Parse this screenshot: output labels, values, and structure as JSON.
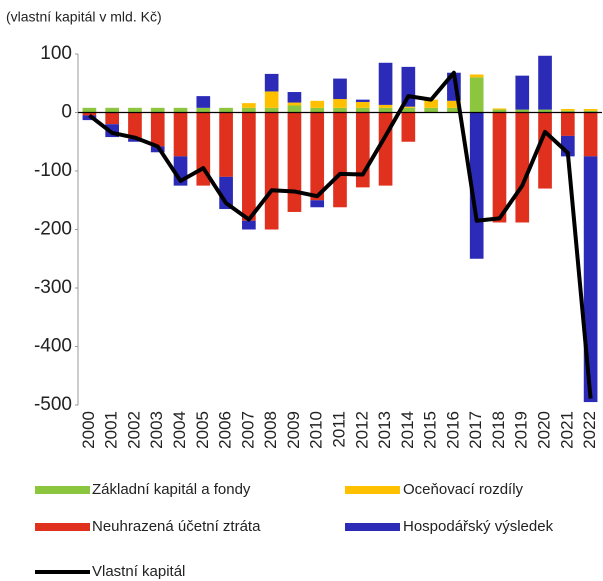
{
  "chart_data": {
    "type": "bar",
    "title": "(vlastní kapitál v mld. Kč)",
    "categories": [
      "2000",
      "2001",
      "2002",
      "2003",
      "2004",
      "2005",
      "2006",
      "2007",
      "2008",
      "2009",
      "2010",
      "2011",
      "2012",
      "2013",
      "2014",
      "2015",
      "2016",
      "2017",
      "2018",
      "2019",
      "2020",
      "2021",
      "2022"
    ],
    "series": [
      {
        "name": "Základní kapitál a fondy",
        "color": "#8cc63f",
        "values": [
          8,
          8,
          8,
          8,
          8,
          8,
          8,
          8,
          8,
          12,
          8,
          8,
          8,
          8,
          8,
          8,
          8,
          60,
          5,
          5,
          5,
          3,
          3
        ]
      },
      {
        "name": "Oceňovací rozdíly",
        "color": "#ffc000",
        "values": [
          0,
          0,
          0,
          0,
          0,
          0,
          0,
          8,
          28,
          5,
          12,
          15,
          10,
          5,
          2,
          14,
          12,
          5,
          2,
          0,
          0,
          3,
          3
        ]
      },
      {
        "name": "Neuhrazená účetní ztráta",
        "color": "#e0301e",
        "values": [
          -5,
          -20,
          -45,
          -58,
          -75,
          -125,
          -110,
          -185,
          -200,
          -170,
          -150,
          -162,
          -128,
          -125,
          -50,
          0,
          0,
          0,
          -188,
          -188,
          -130,
          -40,
          -75
        ]
      },
      {
        "name": "Hospodářský výsledek",
        "color": "#2b2bb8",
        "values": [
          -8,
          -22,
          -5,
          -10,
          -50,
          20,
          -55,
          -15,
          30,
          18,
          -12,
          35,
          4,
          72,
          68,
          0,
          48,
          -250,
          0,
          58,
          92,
          -35,
          -420
        ]
      }
    ],
    "line": {
      "name": "Vlastní kapitál",
      "color": "#000000",
      "values": [
        -5,
        -35,
        -43,
        -58,
        -117,
        -95,
        -155,
        -183,
        -133,
        -135,
        -143,
        -105,
        -106,
        -40,
        28,
        22,
        68,
        -185,
        -181,
        -125,
        -33,
        -69,
        -489
      ]
    },
    "ylim": [
      -500,
      100
    ],
    "yticks": [
      -500,
      -400,
      -300,
      -200,
      -100,
      0,
      100
    ]
  }
}
